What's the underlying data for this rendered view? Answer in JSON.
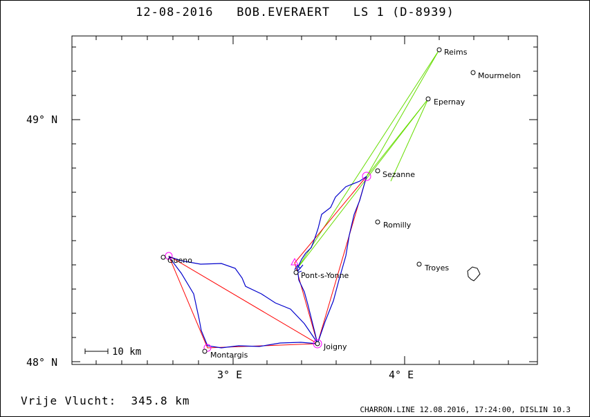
{
  "header": {
    "date": "12-08-2016",
    "pilot": "BOB.EVERAERT",
    "glider": "LS 1 (D-8939)"
  },
  "axes": {
    "lat_labels": [
      "49° N",
      "48° N"
    ],
    "lon_labels": [
      "3° E",
      "4° E"
    ]
  },
  "map": {
    "places": [
      {
        "name": "Reims"
      },
      {
        "name": "Mourmelon"
      },
      {
        "name": "Epernay"
      },
      {
        "name": "Sezanne"
      },
      {
        "name": "Romilly"
      },
      {
        "name": "Troyes"
      },
      {
        "name": "Pont-s-Yonne"
      },
      {
        "name": "Joigny"
      },
      {
        "name": "Montargis"
      },
      {
        "name": "Gueno"
      }
    ],
    "scale_label": "10 km",
    "colors": {
      "flight_track": "#0000cc",
      "task_lines": "#ff0000",
      "alt_lines": "#66dd00",
      "turnpoints": "#ff00ff"
    }
  },
  "footer": {
    "distance_label": "Vrije Vlucht:",
    "distance_value": "345.8 km",
    "credits": "CHARRON.LINE 12.08.2016, 17:24:00, DISLIN 10.3"
  }
}
